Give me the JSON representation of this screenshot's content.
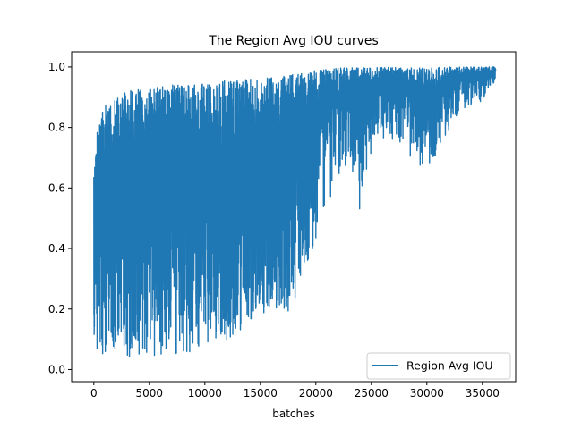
{
  "chart_data": {
    "type": "line",
    "title": "The Region Avg IOU curves",
    "xlabel": "batches",
    "ylabel": "",
    "xlim": [
      -2000,
      38000
    ],
    "ylim": [
      -0.04,
      1.05
    ],
    "x_ticks": [
      0,
      5000,
      10000,
      15000,
      20000,
      25000,
      30000,
      35000
    ],
    "x_tick_labels": [
      "0",
      "5000",
      "10000",
      "15000",
      "20000",
      "25000",
      "30000",
      "35000"
    ],
    "y_ticks": [
      0.0,
      0.2,
      0.4,
      0.6,
      0.8,
      1.0
    ],
    "y_tick_labels": [
      "0.0",
      "0.2",
      "0.4",
      "0.6",
      "0.8",
      "1.0"
    ],
    "grid": false,
    "legend": {
      "position": "lower-right",
      "entries": [
        "Region Avg IOU"
      ]
    },
    "series": [
      {
        "name": "Region Avg IOU",
        "color": "#1f77b4",
        "x_range": [
          0,
          36200
        ],
        "upper_envelope": {
          "x": [
            0,
            300,
            1000,
            2000,
            3000,
            5000,
            7000,
            9000,
            11000,
            13000,
            15000,
            17000,
            19000,
            20000,
            21000,
            22000,
            25000,
            30000,
            35000,
            36200
          ],
          "y": [
            0.64,
            0.81,
            0.87,
            0.9,
            0.92,
            0.93,
            0.94,
            0.94,
            0.95,
            0.96,
            0.96,
            0.97,
            0.98,
            0.99,
            0.995,
            0.997,
            0.998,
            0.999,
            1.0,
            1.0
          ]
        },
        "lower_envelope": {
          "x": [
            0,
            300,
            1000,
            2000,
            3000,
            5000,
            7000,
            9000,
            11000,
            12500,
            14000,
            16000,
            18000,
            19000,
            20000,
            21000,
            22000,
            23000,
            24000,
            25000,
            27000,
            30000,
            33000,
            35000,
            36200
          ],
          "y": [
            0.03,
            0.05,
            0.05,
            0.05,
            0.04,
            0.04,
            0.05,
            0.06,
            0.08,
            0.1,
            0.16,
            0.2,
            0.19,
            0.34,
            0.42,
            0.52,
            0.6,
            0.7,
            0.51,
            0.72,
            0.76,
            0.65,
            0.86,
            0.88,
            0.96
          ]
        }
      }
    ]
  }
}
